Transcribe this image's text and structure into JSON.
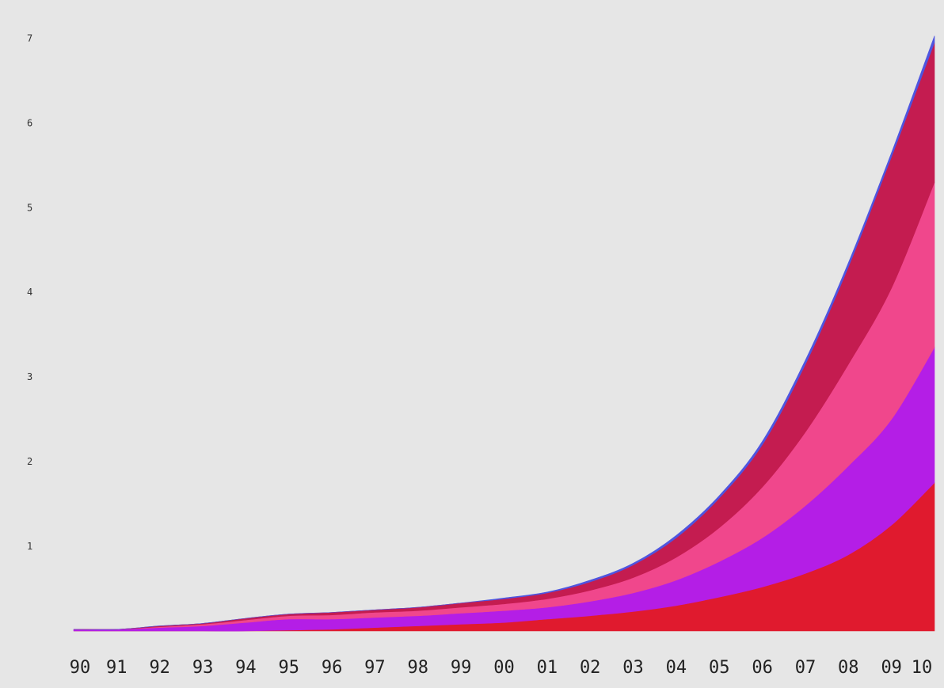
{
  "chart_data": {
    "type": "area",
    "stacked": true,
    "title": "",
    "xlabel": "",
    "ylabel": "",
    "x": [
      "90",
      "91",
      "92",
      "93",
      "94",
      "95",
      "96",
      "97",
      "98",
      "99",
      "00",
      "01",
      "02",
      "03",
      "04",
      "05",
      "06",
      "07",
      "08",
      "09",
      "10"
    ],
    "ylim": [
      0,
      7.2
    ],
    "yticks": [
      1,
      2,
      3,
      4,
      5,
      6,
      7
    ],
    "grid": false,
    "legend": "none",
    "series": [
      {
        "color": "#e01a2e",
        "values": [
          0.0,
          0.0,
          0.0,
          0.0,
          0.0,
          0.01,
          0.02,
          0.04,
          0.06,
          0.08,
          0.1,
          0.14,
          0.18,
          0.23,
          0.3,
          0.4,
          0.52,
          0.68,
          0.9,
          1.25,
          1.75
        ]
      },
      {
        "color": "#b41ee6",
        "values": [
          0.02,
          0.02,
          0.04,
          0.06,
          0.1,
          0.13,
          0.12,
          0.12,
          0.12,
          0.13,
          0.14,
          0.14,
          0.17,
          0.22,
          0.3,
          0.42,
          0.58,
          0.8,
          1.05,
          1.25,
          1.6
        ]
      },
      {
        "color": "#f0478c",
        "values": [
          0.0,
          0.0,
          0.01,
          0.02,
          0.03,
          0.04,
          0.05,
          0.06,
          0.06,
          0.07,
          0.08,
          0.1,
          0.13,
          0.18,
          0.27,
          0.4,
          0.6,
          0.87,
          1.2,
          1.55,
          1.95
        ]
      },
      {
        "color": "#c41c50",
        "values": [
          0.0,
          0.0,
          0.01,
          0.01,
          0.02,
          0.02,
          0.03,
          0.03,
          0.04,
          0.05,
          0.06,
          0.07,
          0.1,
          0.15,
          0.23,
          0.35,
          0.5,
          0.8,
          1.15,
          1.55,
          1.65
        ]
      },
      {
        "color": "#4e55e0",
        "values": [
          0.0,
          0.0,
          0.0,
          0.0,
          0.0,
          0.0,
          0.0,
          0.0,
          0.0,
          0.0,
          0.01,
          0.01,
          0.02,
          0.02,
          0.03,
          0.03,
          0.04,
          0.05,
          0.05,
          0.05,
          0.08
        ]
      }
    ]
  }
}
